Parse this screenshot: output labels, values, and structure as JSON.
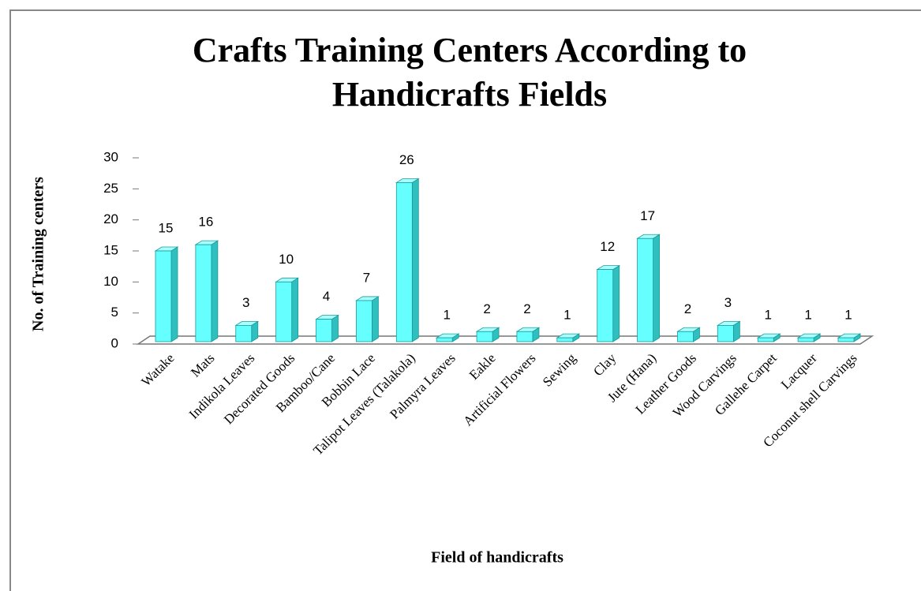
{
  "chart_data": {
    "type": "bar",
    "title": "Crafts Training Centers According to Handicrafts Fields",
    "x_label": "Field of handicrafts",
    "y_label": "No. of Training centers",
    "categories": [
      "Watake",
      "Mats",
      "Indikola Leaves",
      "Decorated Goods",
      "Bamboo/Cane",
      "Bobbin Lace",
      "Talipot Leaves (Talakola)",
      "Palmyra Leaves",
      "Eakle",
      "Artificial Flowers",
      "Sewing",
      "Clay",
      "Jute (Hana)",
      "Leather Goods",
      "Wood Carvings",
      "Gallehe Carpet",
      "Lacquer",
      "Coconut shell Carvings"
    ],
    "values": [
      15,
      16,
      3,
      10,
      4,
      7,
      26,
      1,
      2,
      2,
      1,
      12,
      17,
      2,
      3,
      1,
      1,
      1
    ],
    "color": "#66ffff",
    "ylim": [
      0,
      30
    ],
    "yticks": [
      0,
      5,
      10,
      15,
      20,
      25,
      30
    ]
  }
}
